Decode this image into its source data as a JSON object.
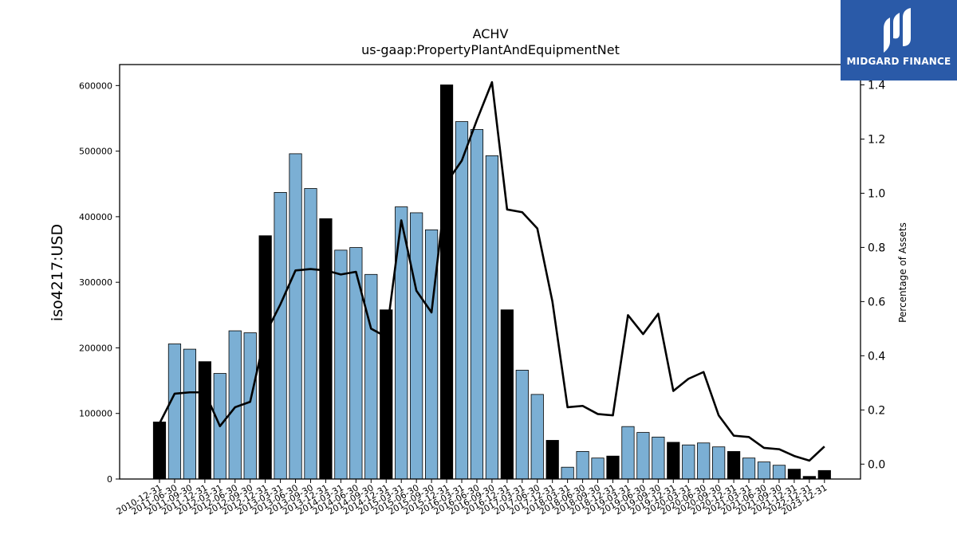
{
  "chart_data": {
    "type": "bar",
    "title": "ACHV",
    "subtitle": "us-gaap:PropertyPlantAndEquipmentNet",
    "ylabel": "iso4217:USD",
    "y2label": "Percentage of Assets",
    "ylim": [
      0,
      632000
    ],
    "y2lim": [
      -0.055,
      1.475
    ],
    "yticks": [
      0,
      100000,
      200000,
      300000,
      400000,
      500000,
      600000
    ],
    "y2ticks": [
      "0.0",
      "0.2",
      "0.4",
      "0.6",
      "0.8",
      "1.0",
      "1.2",
      "1.4"
    ],
    "categories": [
      "2010-12-31",
      "2011-06-30",
      "2011-09-30",
      "2011-12-31",
      "2012-03-31",
      "2012-06-30",
      "2012-09-30",
      "2012-12-31",
      "2013-03-31",
      "2013-06-30",
      "2013-09-30",
      "2013-12-31",
      "2014-03-31",
      "2014-06-30",
      "2014-09-30",
      "2014-12-31",
      "2015-03-31",
      "2015-06-30",
      "2015-09-30",
      "2015-12-31",
      "2016-03-31",
      "2016-06-30",
      "2016-09-30",
      "2016-12-31",
      "2017-03-31",
      "2017-06-30",
      "2017-12-31",
      "2018-03-31",
      "2018-06-30",
      "2018-09-30",
      "2018-12-31",
      "2019-03-31",
      "2019-06-30",
      "2019-09-30",
      "2019-12-31",
      "2020-03-31",
      "2020-06-30",
      "2020-09-30",
      "2020-12-31",
      "2021-03-31",
      "2021-06-30",
      "2021-09-30",
      "2021-12-31",
      "2022-12-31",
      "2023-12-31"
    ],
    "series": [
      {
        "type": "bar",
        "values": [
          87000,
          206000,
          198000,
          179000,
          161000,
          226000,
          223000,
          371000,
          437000,
          496000,
          443000,
          397000,
          349000,
          353000,
          312000,
          258000,
          415000,
          406000,
          380000,
          601000,
          545000,
          533000,
          493000,
          258000,
          166000,
          129000,
          59000,
          18000,
          42000,
          32000,
          35000,
          80000,
          71000,
          64000,
          56000,
          52000,
          55000,
          49000,
          42000,
          32000,
          26000,
          21000,
          15000,
          4000,
          13000
        ],
        "annual": [
          true,
          false,
          false,
          true,
          false,
          false,
          false,
          true,
          false,
          false,
          false,
          true,
          false,
          false,
          false,
          true,
          false,
          false,
          false,
          true,
          false,
          false,
          false,
          true,
          false,
          false,
          true,
          false,
          false,
          false,
          true,
          false,
          false,
          false,
          true,
          false,
          false,
          false,
          true,
          false,
          false,
          false,
          true,
          true,
          true
        ],
        "colors": {
          "annual": "#000000",
          "quarterly": "#7bafd4"
        }
      },
      {
        "type": "line",
        "axis": "right",
        "values": [
          0.15,
          0.26,
          0.265,
          0.265,
          0.14,
          0.21,
          0.23,
          0.48,
          0.59,
          0.715,
          0.72,
          0.715,
          0.7,
          0.71,
          0.5,
          0.47,
          0.9,
          0.64,
          0.56,
          1.04,
          1.12,
          1.27,
          1.41,
          0.94,
          0.93,
          0.87,
          0.6,
          0.21,
          0.215,
          0.185,
          0.18,
          0.55,
          0.48,
          0.555,
          0.27,
          0.315,
          0.34,
          0.18,
          0.105,
          0.1,
          0.06,
          0.055,
          0.03,
          0.013,
          0.065
        ]
      }
    ]
  },
  "logo": {
    "text": "MIDGARD FINANCE"
  }
}
